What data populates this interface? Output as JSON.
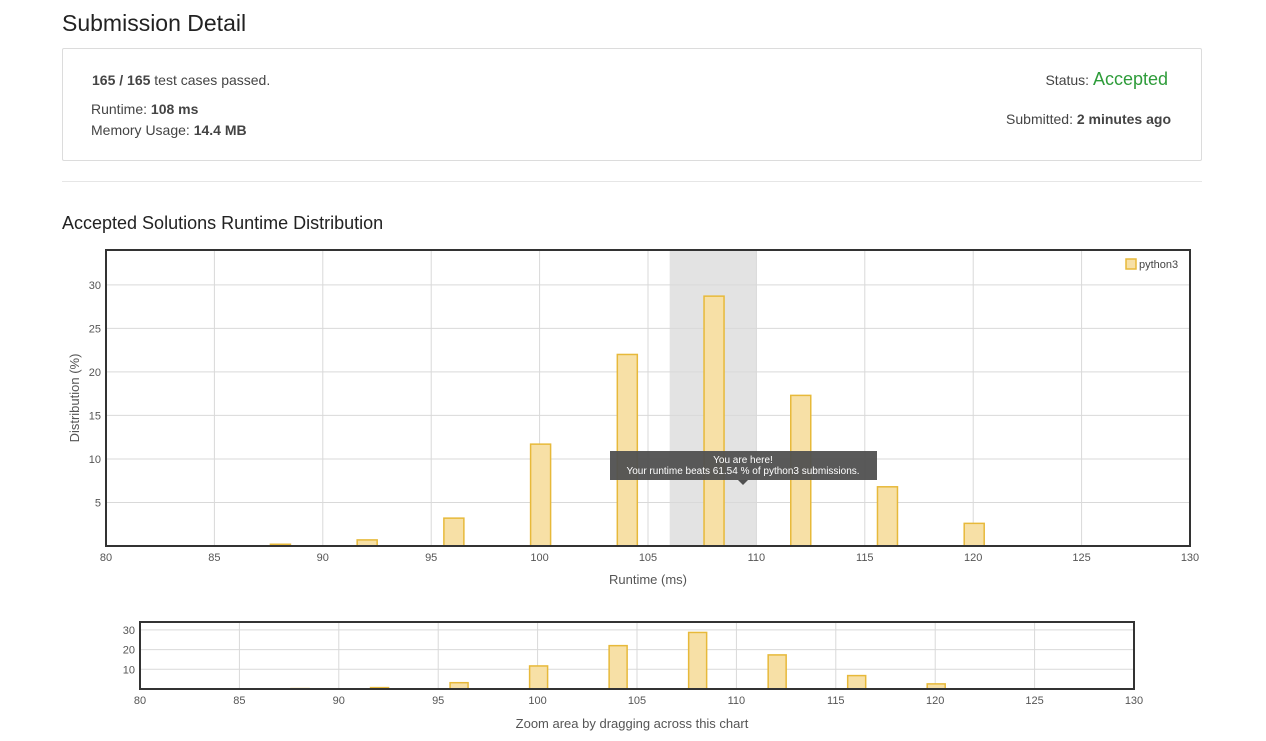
{
  "page": {
    "title": "Submission Detail"
  },
  "detail": {
    "testcases_value": "165 / 165",
    "testcases_suffix": " test cases passed.",
    "runtime_label": "Runtime: ",
    "runtime_value": "108 ms",
    "memory_label": "Memory Usage: ",
    "memory_value": "14.4 MB",
    "status_label": "Status: ",
    "status_value": "Accepted",
    "submitted_label": "Submitted: ",
    "submitted_value": "2 minutes ago"
  },
  "colors": {
    "bar_fill": "#f7e0a6",
    "bar_stroke": "#e7b93a",
    "accepted": "#2e9c3a"
  },
  "section": {
    "title": "Accepted Solutions Runtime Distribution"
  },
  "chart_data": [
    {
      "type": "bar",
      "xlabel": "Runtime (ms)",
      "ylabel": "Distribution (%)",
      "xlim": [
        80,
        130
      ],
      "ylim": [
        0,
        34
      ],
      "xticks": [
        80,
        85,
        90,
        95,
        100,
        105,
        110,
        115,
        120,
        125,
        130
      ],
      "yticks": [
        5,
        10,
        15,
        20,
        25,
        30
      ],
      "grid": true,
      "legend": "top-right",
      "series": [
        {
          "name": "python3",
          "x": [
            88,
            92,
            96,
            100,
            104,
            108,
            112,
            116,
            120
          ],
          "values": [
            0.2,
            0.7,
            3.2,
            11.7,
            22.0,
            28.7,
            17.3,
            6.8,
            2.6
          ]
        }
      ],
      "highlight_range": [
        106,
        110
      ],
      "tooltip": {
        "line1": "You are here!",
        "line2": "Your runtime beats 61.54 % of python3 submissions."
      }
    },
    {
      "type": "bar",
      "xlabel": "Zoom area by dragging across this chart",
      "xlim": [
        80,
        130
      ],
      "ylim": [
        0,
        34
      ],
      "xticks": [
        80,
        85,
        90,
        95,
        100,
        105,
        110,
        115,
        120,
        125,
        130
      ],
      "yticks": [
        10,
        20,
        30
      ],
      "grid": true,
      "series": [
        {
          "x": [
            88,
            92,
            96,
            100,
            104,
            108,
            112,
            116,
            120
          ],
          "values": [
            0.2,
            0.7,
            3.2,
            11.7,
            22.0,
            28.7,
            17.3,
            6.8,
            2.6
          ]
        }
      ]
    }
  ]
}
